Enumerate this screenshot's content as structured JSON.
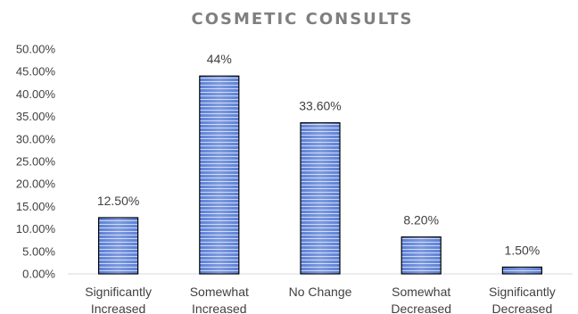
{
  "chart_data": {
    "type": "bar",
    "title": "COSMETIC CONSULTS",
    "categories": [
      [
        "Significantly",
        "Increased"
      ],
      [
        "Somewhat",
        "Increased"
      ],
      [
        "No Change"
      ],
      [
        "Somewhat",
        "Decreased"
      ],
      [
        "Significantly",
        "Decreased"
      ]
    ],
    "values": [
      12.5,
      44,
      33.6,
      8.2,
      1.5
    ],
    "data_labels": [
      "12.50%",
      "44%",
      "33.60%",
      "8.20%",
      "1.50%"
    ],
    "ytick_labels": [
      "0.00%",
      "5.00%",
      "10.00%",
      "15.00%",
      "20.00%",
      "25.00%",
      "30.00%",
      "35.00%",
      "40.00%",
      "45.00%",
      "50.00%"
    ],
    "ylim": [
      0,
      50
    ],
    "ytick_step": 5,
    "grid": false,
    "legend": "none",
    "bar_color": "#5b7fd6",
    "bar_stripe_color": "#ffffff"
  }
}
